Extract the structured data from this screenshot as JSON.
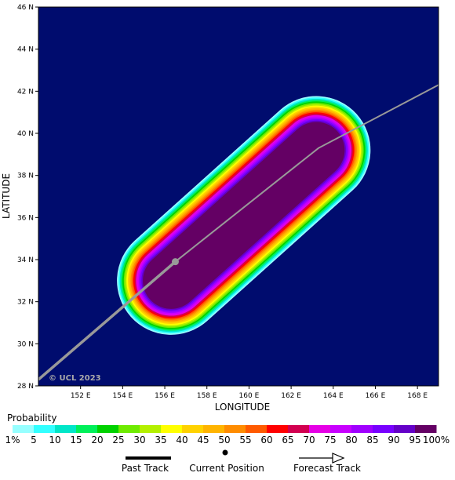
{
  "map": {
    "xlabel": "LONGITUDE",
    "ylabel": "LATITUDE",
    "copyright": "© UCL 2023",
    "lon_range": [
      150,
      169
    ],
    "lat_range": [
      28,
      46
    ],
    "lon_ticks": [
      152,
      154,
      156,
      158,
      160,
      162,
      164,
      166,
      168
    ],
    "lon_tick_labels": [
      "152 E",
      "154 E",
      "156 E",
      "158 E",
      "160 E",
      "162 E",
      "164 E",
      "166 E",
      "168 E"
    ],
    "lat_ticks": [
      28,
      30,
      32,
      34,
      36,
      38,
      40,
      42,
      44,
      46
    ],
    "lat_tick_labels": [
      "28 N",
      "30 N",
      "32 N",
      "34 N",
      "36 N",
      "38 N",
      "40 N",
      "42 N",
      "44 N",
      "46 N"
    ],
    "background_color": "#000c6e",
    "track_color": "#999999",
    "past_track": [
      [
        150.0,
        28.3
      ],
      [
        156.5,
        33.9
      ]
    ],
    "current_position": [
      156.5,
      33.9
    ],
    "forecast_track": [
      [
        156.5,
        33.9
      ],
      [
        163.3,
        39.3
      ],
      [
        169.0,
        42.3
      ]
    ]
  },
  "probability_legend": {
    "title": "Probability",
    "labels": [
      "1%",
      "5",
      "10",
      "15",
      "20",
      "25",
      "30",
      "35",
      "40",
      "45",
      "50",
      "55",
      "60",
      "65",
      "70",
      "75",
      "80",
      "85",
      "90",
      "95",
      "100%"
    ],
    "colors": [
      "#96ffff",
      "#32ffff",
      "#00e6c8",
      "#00f05a",
      "#00d200",
      "#6eeb00",
      "#b4f000",
      "#ffff00",
      "#ffd200",
      "#ffb400",
      "#ff8c00",
      "#ff5a00",
      "#ff0000",
      "#d20050",
      "#e600e6",
      "#c800ff",
      "#a000ff",
      "#7800ff",
      "#6400c8",
      "#640064"
    ]
  },
  "track_legend": {
    "past_track": "Past Track",
    "current_position": "Current Position",
    "forecast_track": "Forecast Track"
  }
}
